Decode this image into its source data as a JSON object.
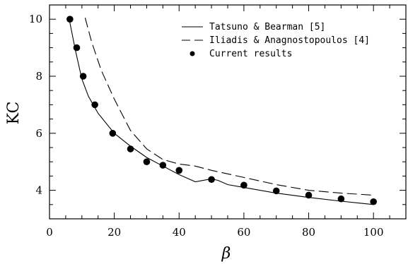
{
  "chart_data": {
    "type": "line",
    "xlabel": "β",
    "ylabel": "KC",
    "xlim": [
      0,
      110
    ],
    "ylim": [
      3,
      10.5
    ],
    "xticks": [
      0,
      20,
      40,
      60,
      80,
      100
    ],
    "yticks": [
      4,
      6,
      8,
      10
    ],
    "x_minor_step": 5,
    "y_minor_step": 0.5,
    "legend_position": "top-right",
    "series": [
      {
        "name": "Tatsuno & Bearman [5]",
        "style": "solid",
        "points": [
          [
            6,
            10.05
          ],
          [
            8,
            8.9
          ],
          [
            10,
            7.9
          ],
          [
            12,
            7.3
          ],
          [
            15,
            6.7
          ],
          [
            20,
            6.0
          ],
          [
            25,
            5.55
          ],
          [
            30,
            5.15
          ],
          [
            35,
            4.85
          ],
          [
            40,
            4.55
          ],
          [
            45,
            4.3
          ],
          [
            50,
            4.4
          ],
          [
            52,
            4.35
          ],
          [
            55,
            4.2
          ],
          [
            60,
            4.1
          ],
          [
            70,
            3.9
          ],
          [
            80,
            3.75
          ],
          [
            90,
            3.62
          ],
          [
            100,
            3.5
          ]
        ]
      },
      {
        "name": "Iliadis & Anagnostopoulos [4]",
        "style": "dashed",
        "points": [
          [
            11,
            10.05
          ],
          [
            13,
            9.2
          ],
          [
            16,
            8.2
          ],
          [
            20,
            7.2
          ],
          [
            25,
            6.1
          ],
          [
            30,
            5.45
          ],
          [
            35,
            5.08
          ],
          [
            40,
            4.92
          ],
          [
            45,
            4.85
          ],
          [
            50,
            4.7
          ],
          [
            60,
            4.45
          ],
          [
            70,
            4.2
          ],
          [
            80,
            4.0
          ],
          [
            90,
            3.9
          ],
          [
            100,
            3.83
          ]
        ]
      },
      {
        "name": "Current results",
        "style": "markers",
        "points": [
          [
            6.3,
            10.0
          ],
          [
            8.4,
            9.0
          ],
          [
            10.4,
            8.0
          ],
          [
            14,
            7.0
          ],
          [
            19.5,
            6.0
          ],
          [
            25,
            5.45
          ],
          [
            30,
            5.0
          ],
          [
            35,
            4.88
          ],
          [
            40,
            4.7
          ],
          [
            50,
            4.38
          ],
          [
            60,
            4.18
          ],
          [
            70,
            3.98
          ],
          [
            80,
            3.83
          ],
          [
            90,
            3.7
          ],
          [
            100,
            3.6
          ]
        ]
      }
    ]
  }
}
